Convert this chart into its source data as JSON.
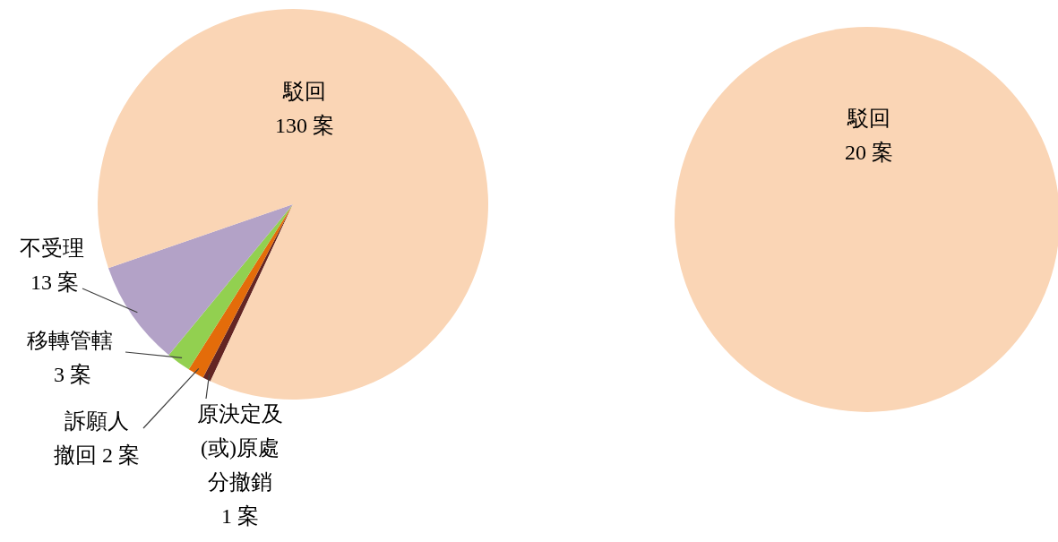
{
  "chart_data": [
    {
      "type": "pie",
      "categories": [
        "原決定及(或)原處分撤銷",
        "訴願人撤回",
        "移轉管轄",
        "不受理",
        "駁回"
      ],
      "values": [
        1,
        2,
        3,
        13,
        130
      ],
      "colors": [
        "#632523",
        "#e46c0a",
        "#92d050",
        "#b3a2c7",
        "#fad5b5"
      ],
      "value_labels": [
        "1 案",
        "2 案",
        "3 案",
        "13 案",
        "130 案"
      ]
    },
    {
      "type": "pie",
      "categories": [
        "駁回"
      ],
      "values": [
        20
      ],
      "colors": [
        "#fad5b5"
      ],
      "value_labels": [
        "20 案"
      ]
    }
  ]
}
